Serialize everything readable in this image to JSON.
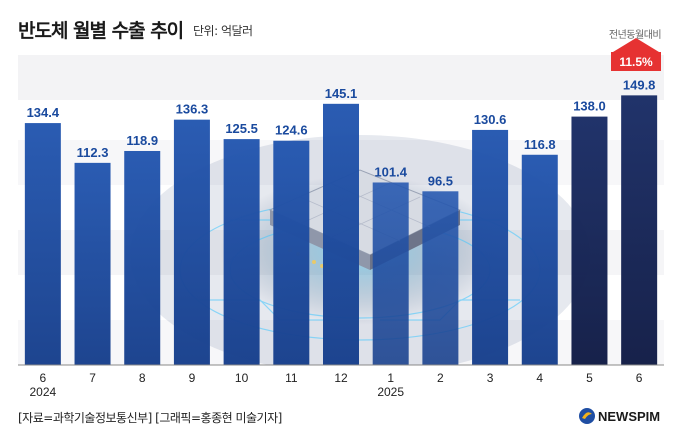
{
  "title": "반도체 월별 수출 추이",
  "unit": "단위: 억달러",
  "change_caption": "전년동월대비",
  "change_value": "11.5%",
  "source": "[자료=과학기술정보통신부] [그래픽=홍종현 미술기자]",
  "logo": "NEWSPIM",
  "colors": {
    "bar_default": "#1f4ea3",
    "bar_highlight": "#14245a",
    "label": "#1a4a9e",
    "change_badge": "#e63232",
    "axis": "#888888"
  },
  "chart_data": {
    "type": "bar",
    "categories": [
      "6",
      "7",
      "8",
      "9",
      "10",
      "11",
      "12",
      "1",
      "2",
      "3",
      "4",
      "5",
      "6"
    ],
    "year_labels": [
      "2024",
      "",
      "",
      "",
      "",
      "",
      "",
      "2025",
      "",
      "",
      "",
      "",
      ""
    ],
    "values": [
      134.4,
      112.3,
      118.9,
      136.3,
      125.5,
      124.6,
      145.1,
      101.4,
      96.5,
      130.6,
      116.8,
      138.0,
      149.8
    ],
    "value_labels": [
      "134.4",
      "112.3",
      "118.9",
      "136.3",
      "125.5",
      "124.6",
      "145.1",
      "101.4",
      "96.5",
      "130.6",
      "116.8",
      "138.0",
      "149.8"
    ],
    "title": "반도체 월별 수출 추이",
    "xlabel": "",
    "ylabel": "",
    "ylim": [
      0,
      160
    ],
    "grid": false,
    "legend": "none"
  }
}
